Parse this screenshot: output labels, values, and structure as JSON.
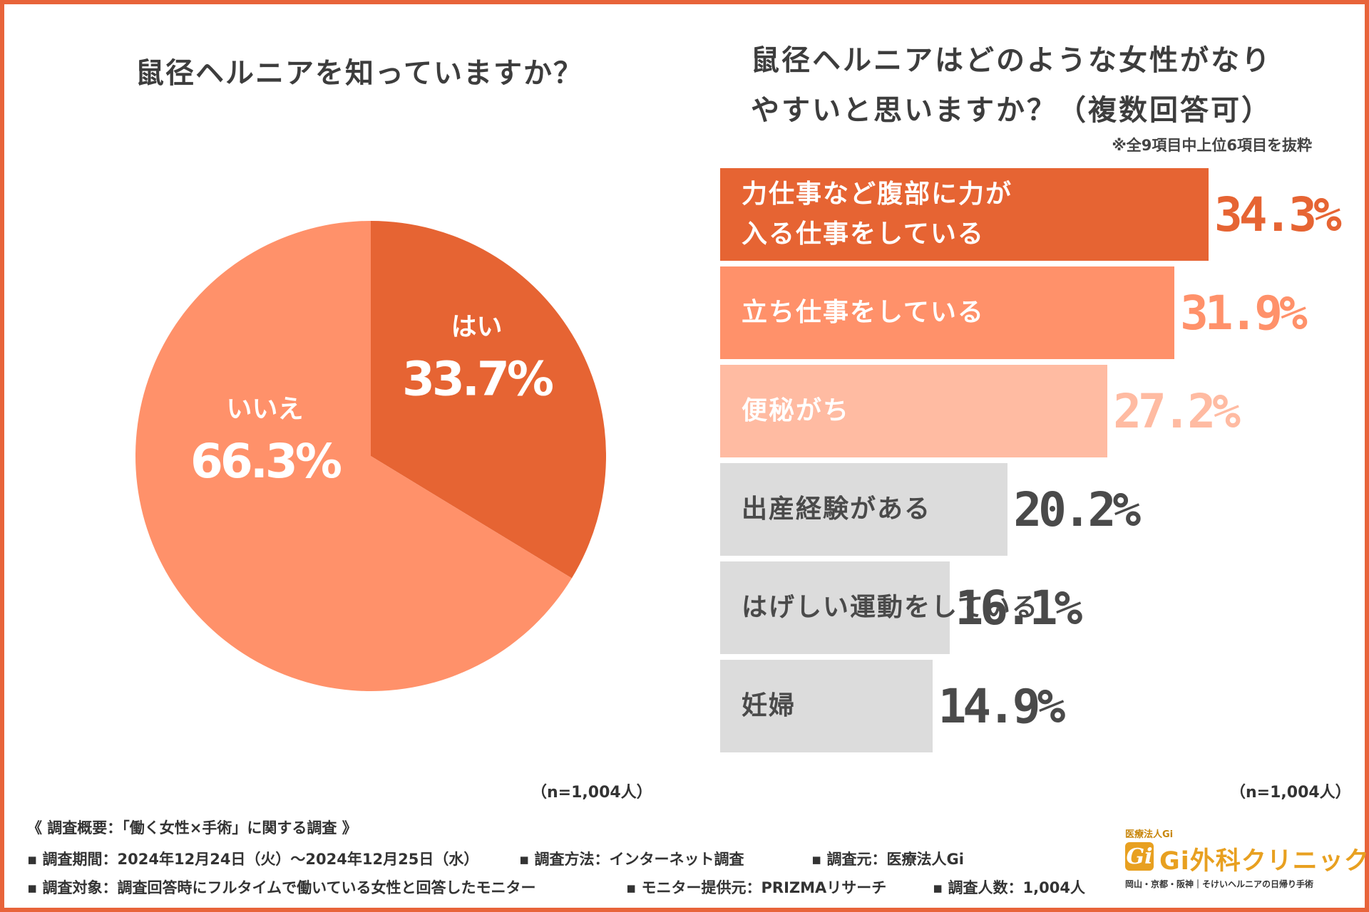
{
  "pie": {
    "title": "鼠径ヘルニアを知っていますか？",
    "n_label": "（n=1,004人）"
  },
  "bar": {
    "title_line1": "鼠径ヘルニアはどのような女性がなり",
    "title_line2": "やすいと思いますか？（複数回答可）",
    "note": "※全9項目中上位6項目を抜粋",
    "n_label": "（n=1,004人）"
  },
  "colors": {
    "dark_orange": "#e66433",
    "mid_orange": "#ff916a",
    "light_orange": "#ffbba2",
    "gray_bar": "#dcdcdc",
    "gray_text": "#4a4a4a",
    "frame": "#e8643a"
  },
  "chart_data": [
    {
      "type": "pie",
      "title": "鼠径ヘルニアを知っていますか？",
      "slices": [
        {
          "label": "はい",
          "value": 33.7,
          "display": "33.7%",
          "color": "#e66433"
        },
        {
          "label": "いいえ",
          "value": 66.3,
          "display": "66.3%",
          "color": "#ff916a"
        }
      ]
    },
    {
      "type": "bar",
      "orientation": "horizontal",
      "title": "鼠径ヘルニアはどのような女性がなりやすいと思いますか？（複数回答可）",
      "categories": [
        "力仕事など腹部に力が\n入る仕事をしている",
        "立ち仕事をしている",
        "便秘がち",
        "出産経験がある",
        "はげしい運動をしている",
        "妊婦"
      ],
      "values": [
        34.3,
        31.9,
        27.2,
        20.2,
        16.1,
        14.9
      ],
      "display": [
        "34.3%",
        "31.9%",
        "27.2%",
        "20.2%",
        "16.1%",
        "14.9%"
      ],
      "bar_colors": [
        "#e66433",
        "#ff916a",
        "#ffbba2",
        "#dcdcdc",
        "#dcdcdc",
        "#dcdcdc"
      ],
      "label_colors": [
        "#ffffff",
        "#ffffff",
        "#ffffff",
        "#4a4a4a",
        "#4a4a4a",
        "#4a4a4a"
      ],
      "value_colors": [
        "#e66433",
        "#ff916a",
        "#ffbba2",
        "#4a4a4a",
        "#4a4a4a",
        "#4a4a4a"
      ],
      "xlim": [
        0,
        34.3
      ]
    }
  ],
  "footer": {
    "heading": "《 調査概要：「働く女性×手術」に関する調査 》",
    "line2": [
      "▪ 調査期間：2024年12月24日（火）～2024年12月25日（水）",
      "▪ 調査方法：インターネット調査",
      "▪ 調査元：医療法人Gi"
    ],
    "line3": [
      "▪ 調査対象：調査回答時にフルタイムで働いている女性と回答したモニター",
      "▪ モニター提供元：PRIZMAリサーチ",
      "▪ 調査人数：1,004人"
    ]
  },
  "logo": {
    "corp": "医療法人Gi",
    "badge": "Gi",
    "name": "Gi外科クリニック",
    "tagline": "岡山・京都・阪神｜そけいヘルニアの日帰り手術"
  }
}
